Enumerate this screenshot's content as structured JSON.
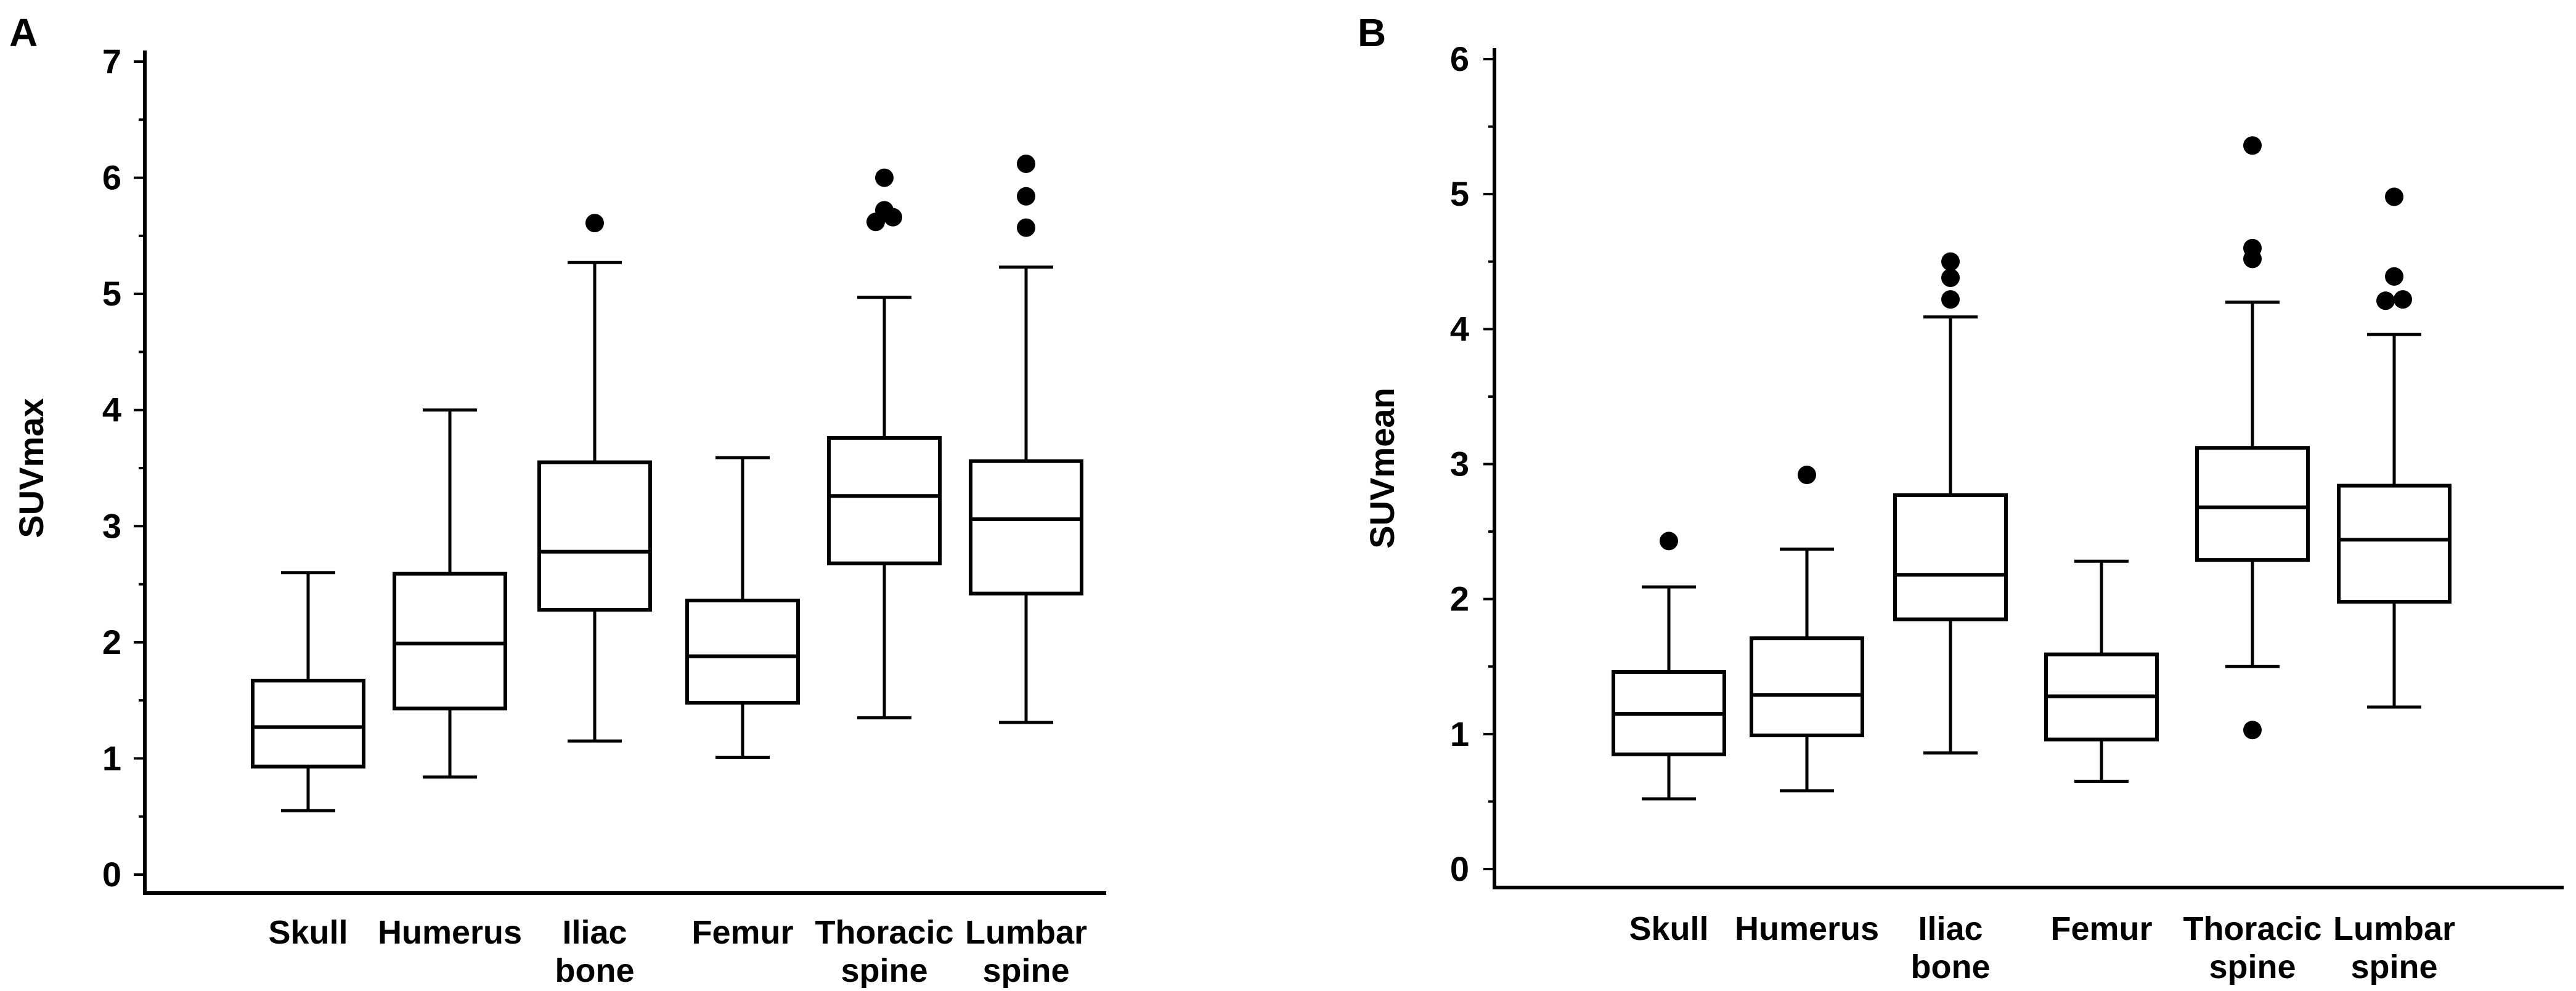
{
  "chart_data": [
    {
      "type": "boxplot",
      "panel_label": "A",
      "ylabel": "SUVmax",
      "xlabel": "",
      "ylim": [
        0,
        7
      ],
      "yticks": [
        "0",
        "1",
        "2",
        "3",
        "4",
        "5",
        "6",
        "7"
      ],
      "categories": [
        {
          "lines": [
            "Skull"
          ]
        },
        {
          "lines": [
            "Humerus"
          ]
        },
        {
          "lines": [
            "Iliac",
            "bone"
          ]
        },
        {
          "lines": [
            "Femur"
          ]
        },
        {
          "lines": [
            "Thoracic",
            "spine"
          ]
        },
        {
          "lines": [
            "Lumbar",
            "spine"
          ]
        }
      ],
      "boxes": [
        {
          "min": 0.55,
          "q1": 0.93,
          "median": 1.27,
          "q3": 1.67,
          "max": 2.6,
          "outliers": []
        },
        {
          "min": 0.84,
          "q1": 1.43,
          "median": 1.99,
          "q3": 2.59,
          "max": 4.0,
          "outliers": []
        },
        {
          "min": 1.15,
          "q1": 2.28,
          "median": 2.78,
          "q3": 3.55,
          "max": 5.27,
          "outliers": [
            5.61
          ]
        },
        {
          "min": 1.01,
          "q1": 1.48,
          "median": 1.88,
          "q3": 2.36,
          "max": 3.59,
          "outliers": []
        },
        {
          "min": 1.35,
          "q1": 2.68,
          "median": 3.26,
          "q3": 3.76,
          "max": 4.97,
          "outliers": [
            5.62,
            5.66,
            5.72,
            6.0
          ]
        },
        {
          "min": 1.31,
          "q1": 2.42,
          "median": 3.06,
          "q3": 3.56,
          "max": 5.23,
          "outliers": [
            5.57,
            5.84,
            6.12
          ]
        }
      ]
    },
    {
      "type": "boxplot",
      "panel_label": "B",
      "ylabel": "SUVmean",
      "xlabel": "",
      "ylim": [
        0,
        6
      ],
      "yticks": [
        "0",
        "1",
        "2",
        "3",
        "4",
        "5",
        "6"
      ],
      "categories": [
        {
          "lines": [
            "Skull"
          ]
        },
        {
          "lines": [
            "Humerus"
          ]
        },
        {
          "lines": [
            "Iliac",
            "bone"
          ]
        },
        {
          "lines": [
            "Femur"
          ]
        },
        {
          "lines": [
            "Thoracic",
            "spine"
          ]
        },
        {
          "lines": [
            "Lumbar",
            "spine"
          ]
        }
      ],
      "boxes": [
        {
          "min": 0.52,
          "q1": 0.85,
          "median": 1.15,
          "q3": 1.46,
          "max": 2.09,
          "outliers": [
            2.43
          ]
        },
        {
          "min": 0.58,
          "q1": 0.99,
          "median": 1.29,
          "q3": 1.71,
          "max": 2.37,
          "outliers": [
            2.92
          ]
        },
        {
          "min": 0.86,
          "q1": 1.85,
          "median": 2.18,
          "q3": 2.77,
          "max": 4.09,
          "outliers": [
            4.22,
            4.38,
            4.5
          ]
        },
        {
          "min": 0.65,
          "q1": 0.96,
          "median": 1.28,
          "q3": 1.59,
          "max": 2.28,
          "outliers": []
        },
        {
          "min": 1.5,
          "q1": 2.29,
          "median": 2.68,
          "q3": 3.12,
          "max": 4.2,
          "outliers": [
            1.03,
            4.52,
            4.6,
            5.36
          ]
        },
        {
          "min": 1.2,
          "q1": 1.98,
          "median": 2.44,
          "q3": 2.84,
          "max": 3.96,
          "outliers": [
            4.21,
            4.22,
            4.39,
            4.98
          ]
        }
      ]
    }
  ]
}
